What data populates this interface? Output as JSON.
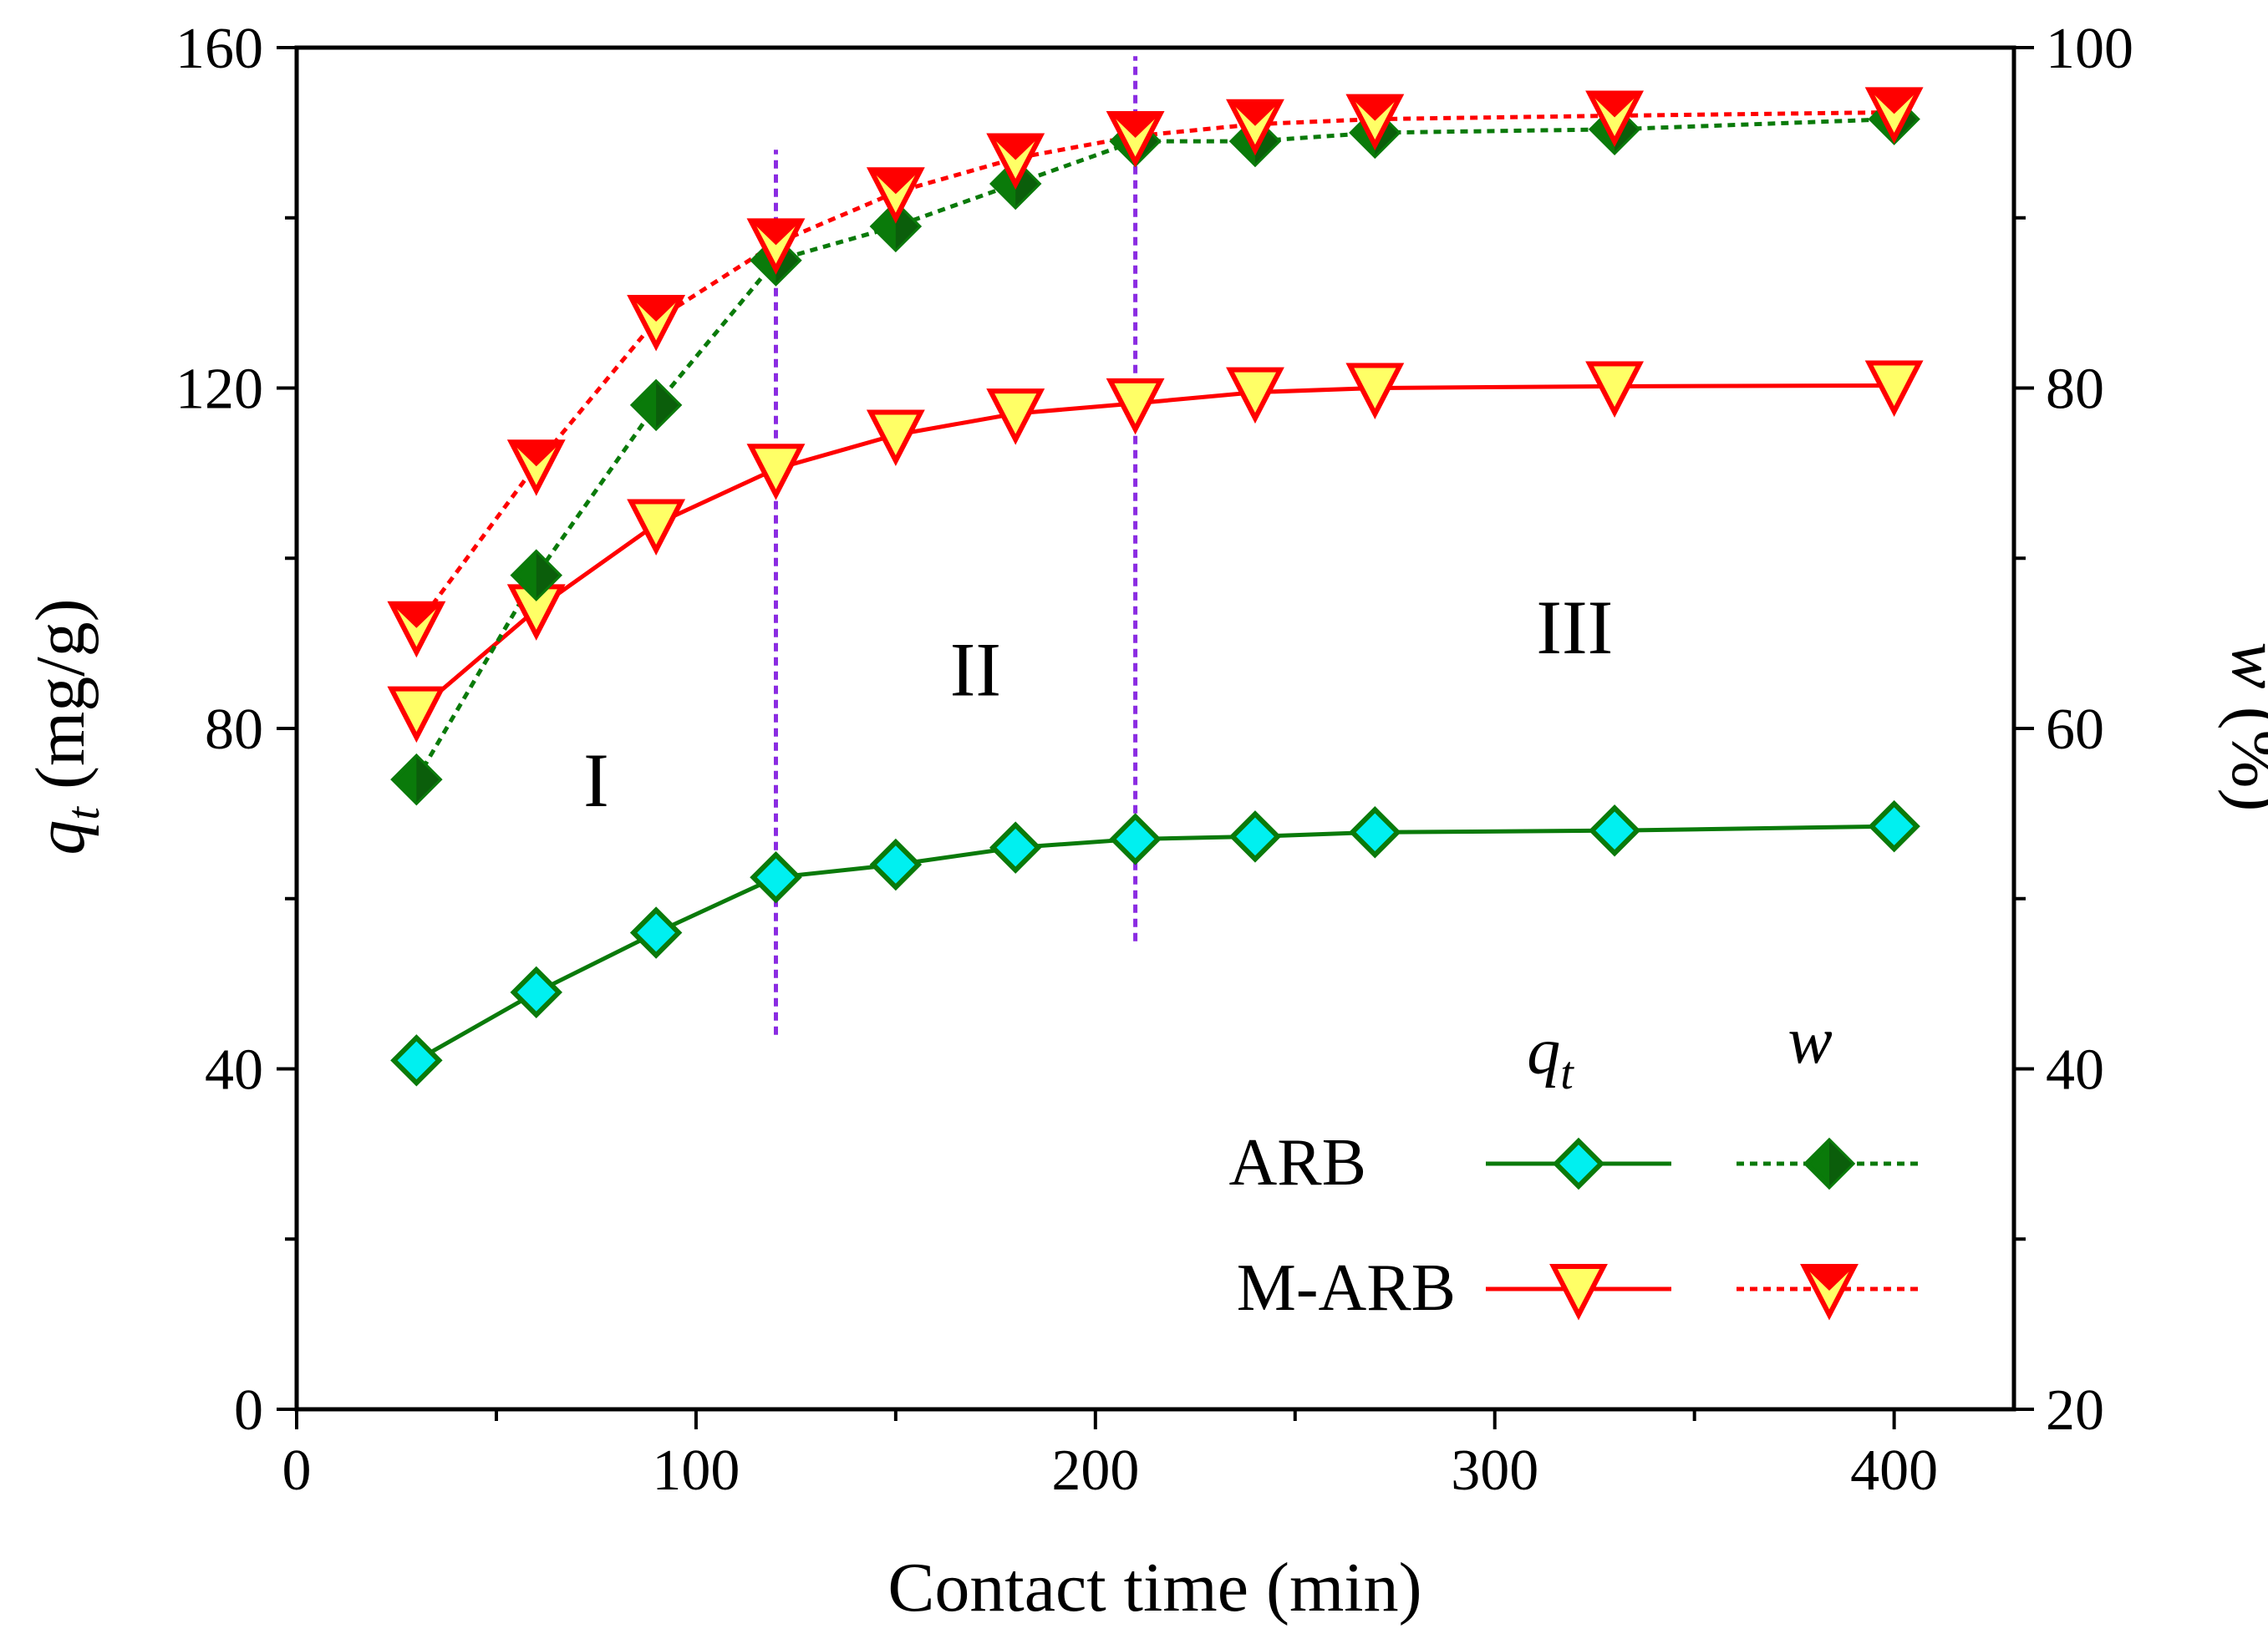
{
  "chart_data": {
    "type": "line",
    "xlabel": "Contact time (min)",
    "ylabel": {
      "symbol": "q",
      "subscript": "t",
      "unit": " (mg/g)"
    },
    "y2label": {
      "symbol": "w",
      "unit": " (%)"
    },
    "xlim": [
      0,
      430
    ],
    "ylim": [
      0,
      160
    ],
    "y2lim": [
      20,
      100
    ],
    "xticks": [
      0,
      100,
      200,
      300,
      400
    ],
    "yticks": [
      0,
      40,
      80,
      120,
      160
    ],
    "y2ticks": [
      20,
      40,
      60,
      80,
      100
    ],
    "xtick_labels": [
      "0",
      "100",
      "200",
      "300",
      "400"
    ],
    "ytick_labels": [
      "0",
      "40",
      "80",
      "120",
      "160"
    ],
    "y2tick_labels": [
      "20",
      "40",
      "60",
      "80",
      "100"
    ],
    "x": [
      30,
      60,
      90,
      120,
      150,
      180,
      210,
      240,
      270,
      330,
      400
    ],
    "series": [
      {
        "name": "ARB q_t",
        "axis": "left",
        "style": "solid",
        "marker": "diamond",
        "line_color": "#0a7a0a",
        "fill": "#00f0f0",
        "values": [
          41,
          49,
          56,
          62.5,
          64,
          66,
          67,
          67.3,
          67.8,
          68,
          68.5
        ]
      },
      {
        "name": "M-ARB q_t",
        "axis": "left",
        "style": "solid",
        "marker": "triangle-down",
        "line_color": "#ff0000",
        "fill": "#ffff66",
        "values": [
          82,
          94,
          104,
          110.5,
          114.5,
          117,
          118.2,
          119.5,
          120,
          120.2,
          120.3
        ]
      },
      {
        "name": "ARB w",
        "axis": "right",
        "style": "dotted",
        "marker": "diamond-half",
        "line_color": "#0a7a0a",
        "fill": "#0a7a0a",
        "values": [
          57,
          69,
          79,
          87.5,
          89.5,
          92,
          94.5,
          94.5,
          95,
          95.2,
          95.8
        ]
      },
      {
        "name": "M-ARB w",
        "axis": "right",
        "style": "dotted",
        "marker": "triangle-down-half",
        "line_color": "#ff0000",
        "fill": "#ff0000",
        "values": [
          66,
          75.5,
          84,
          88.5,
          91.5,
          93.5,
          94.8,
          95.5,
          95.8,
          96,
          96.2
        ]
      }
    ],
    "dividers": [
      120,
      210
    ],
    "divider_color": "#8a2be2",
    "divider_ranges": [
      [
        44,
        148
      ],
      [
        55,
        159
      ]
    ],
    "regions": [
      {
        "label": "I",
        "x": 75,
        "y": 74
      },
      {
        "label": "II",
        "x": 170,
        "y": 87
      },
      {
        "label": "III",
        "x": 320,
        "y": 92
      }
    ],
    "legend": {
      "placement": "bottom-right",
      "header_q": {
        "symbol": "q",
        "subscript": "t"
      },
      "header_w": "w",
      "rows": [
        "ARB",
        "M-ARB"
      ]
    }
  }
}
